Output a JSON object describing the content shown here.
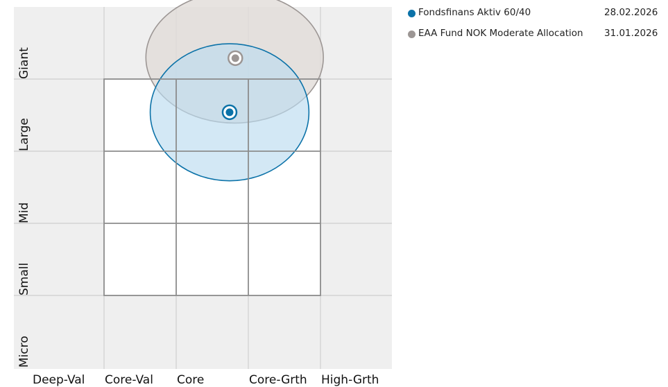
{
  "chart_data": {
    "type": "scatter",
    "title": "",
    "xlabel": "",
    "ylabel": "",
    "x_tick_labels": [
      "Deep-Val",
      "Core-Val",
      "Core",
      "Core-Grth",
      "High-Grth"
    ],
    "y_tick_labels": [
      "Giant",
      "Large",
      "Mid",
      "Small",
      "Micro"
    ],
    "xlim": [
      -250,
      250
    ],
    "ylim": [
      -250,
      250
    ],
    "grid": true,
    "legend_position": "top-right",
    "series": [
      {
        "name": "Fondsfinans Aktiv 60/40",
        "date": "28.02.2026",
        "color": "#0b72a8",
        "fill": "#bcdcf0",
        "x": 24,
        "y": 104,
        "dispersion": {
          "x_min": -86,
          "x_max": 134,
          "y_min": 9,
          "y_max": 199,
          "rotation_deg": 0
        }
      },
      {
        "name": "EAA Fund NOK Moderate Allocation",
        "date": "31.01.2026",
        "color": "#9c9694",
        "fill": "#e1dcd8",
        "x": 32,
        "y": 179,
        "dispersion": {
          "x_min": -92,
          "x_max": 154,
          "y_min": 89,
          "y_max": 271,
          "rotation_deg": 0
        }
      }
    ]
  }
}
